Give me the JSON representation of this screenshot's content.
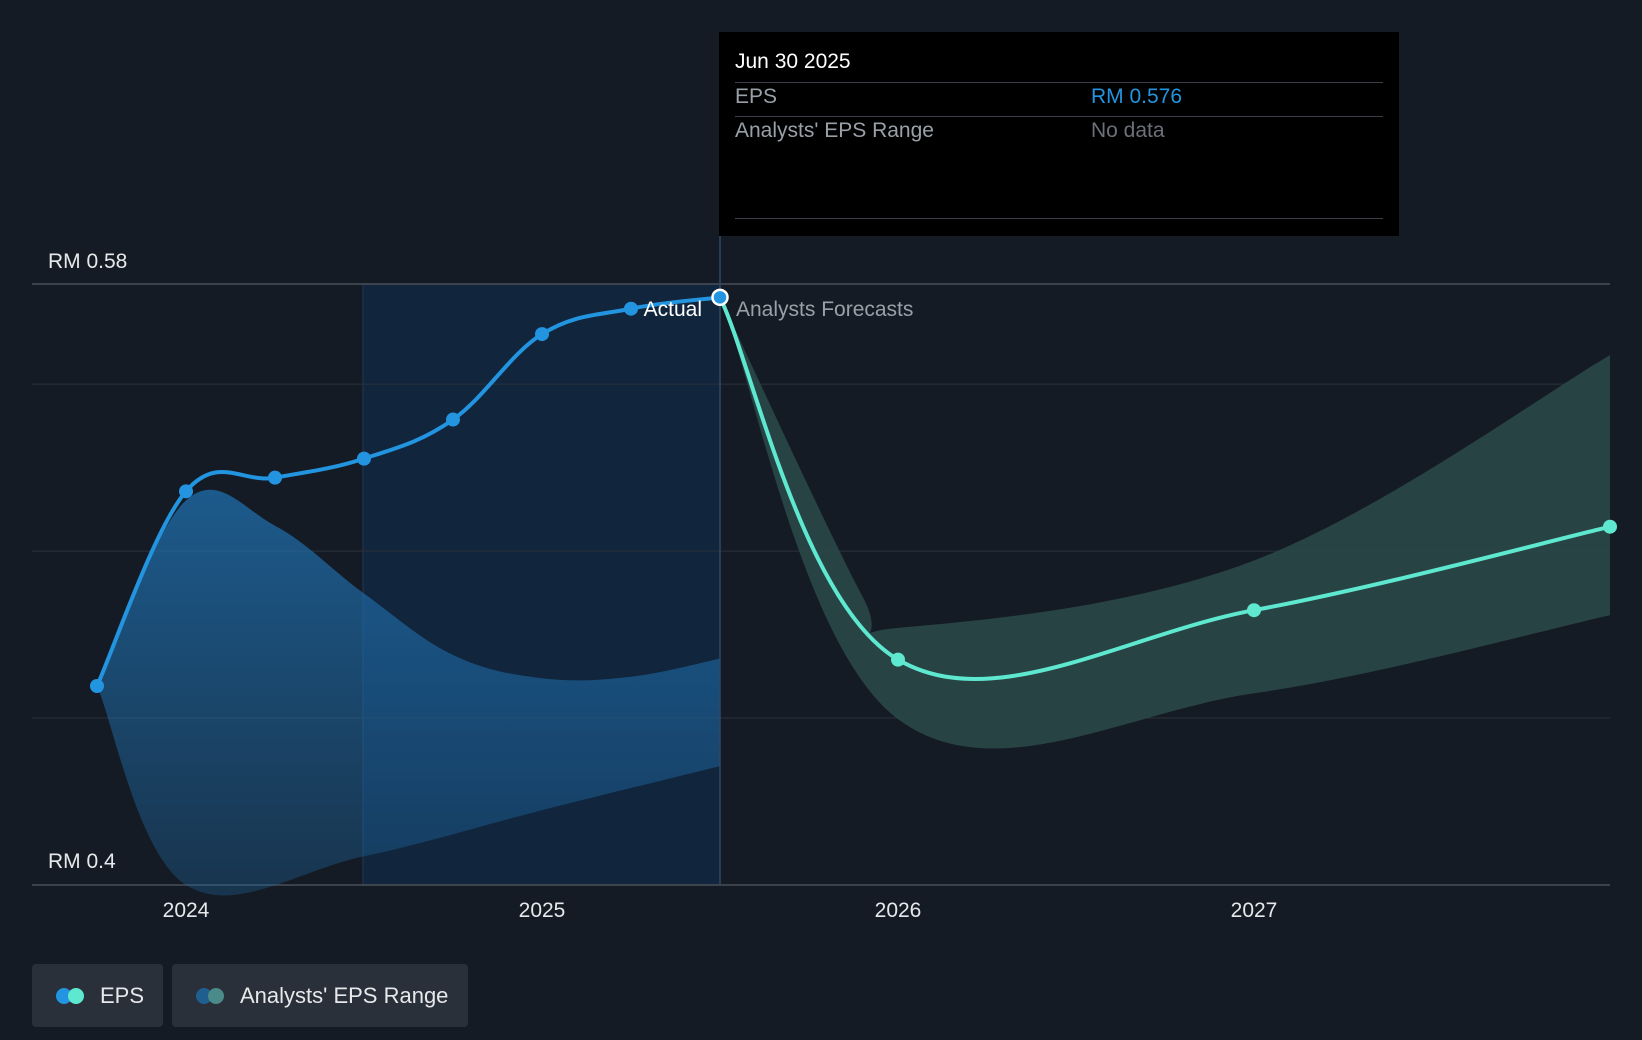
{
  "chart_data": {
    "type": "line",
    "x_ticks": [
      "2024",
      "2025",
      "2026",
      "2027"
    ],
    "y_axis": {
      "min": 0.4,
      "max": 0.58,
      "labels": [
        "RM 0.58",
        "RM 0.4"
      ]
    },
    "divider_labels": {
      "actual": "Actual",
      "forecast": "Analysts Forecasts"
    },
    "series": [
      {
        "name": "EPS",
        "points": [
          {
            "t": 2023.75,
            "v": 0.4596
          },
          {
            "t": 2024.0,
            "v": 0.5179
          },
          {
            "t": 2024.25,
            "v": 0.522
          },
          {
            "t": 2024.5,
            "v": 0.5277
          },
          {
            "t": 2024.75,
            "v": 0.5394
          },
          {
            "t": 2025.0,
            "v": 0.565
          },
          {
            "t": 2025.25,
            "v": 0.5726
          },
          {
            "t": 2025.5,
            "v": 0.576
          }
        ]
      },
      {
        "name": "EPS Forecast",
        "points": [
          {
            "t": 2025.5,
            "v": 0.576
          },
          {
            "t": 2026.0,
            "v": 0.4675
          },
          {
            "t": 2027.0,
            "v": 0.4823
          },
          {
            "t": 2028.0,
            "v": 0.5073
          }
        ]
      }
    ],
    "range_actual": {
      "upper": [
        {
          "t": 2023.75,
          "v": 0.4596
        },
        {
          "t": 2024.0,
          "v": 0.5152
        },
        {
          "t": 2024.25,
          "v": 0.5076
        },
        {
          "t": 2024.5,
          "v": 0.4873
        },
        {
          "t": 2024.75,
          "v": 0.4689
        },
        {
          "t": 2025.0,
          "v": 0.4619
        },
        {
          "t": 2025.25,
          "v": 0.4624
        },
        {
          "t": 2025.5,
          "v": 0.4678
        }
      ],
      "lower": [
        {
          "t": 2025.5,
          "v": 0.4356
        },
        {
          "t": 2025.0,
          "v": 0.4224
        },
        {
          "t": 2024.5,
          "v": 0.4086
        },
        {
          "t": 2024.0,
          "v": 0.4
        },
        {
          "t": 2023.75,
          "v": 0.4596
        }
      ]
    },
    "range_forecast": {
      "upper": [
        {
          "t": 2025.5,
          "v": 0.576
        },
        {
          "t": 2025.9,
          "v": 0.4865
        },
        {
          "t": 2026.0,
          "v": 0.477
        },
        {
          "t": 2027.0,
          "v": 0.4972
        },
        {
          "t": 2028.0,
          "v": 0.5587
        }
      ],
      "lower": [
        {
          "t": 2028.0,
          "v": 0.4808
        },
        {
          "t": 2027.0,
          "v": 0.4574
        },
        {
          "t": 2026.0,
          "v": 0.4497
        },
        {
          "t": 2025.5,
          "v": 0.576
        }
      ]
    },
    "gridlines": [
      0.58,
      0.55,
      0.5,
      0.45,
      0.4
    ],
    "colors": {
      "eps": "#2394df",
      "forecast": "#5ee8d0",
      "range_actual": "#1f6fae",
      "range_forecast": "#2a4a4a",
      "background": "#151b24"
    }
  },
  "tooltip": {
    "date": "Jun 30 2025",
    "rows": [
      {
        "label": "EPS",
        "value": "RM 0.576",
        "color": "#2394df"
      },
      {
        "label": "Analysts' EPS Range",
        "value": "No data",
        "color": "#6b7079"
      }
    ]
  },
  "legend": [
    {
      "label": "EPS",
      "dots": [
        "#2394df",
        "#5ee8d0"
      ]
    },
    {
      "label": "Analysts' EPS Range",
      "dots": [
        "#1f5f90",
        "#4a8a88"
      ]
    }
  ]
}
